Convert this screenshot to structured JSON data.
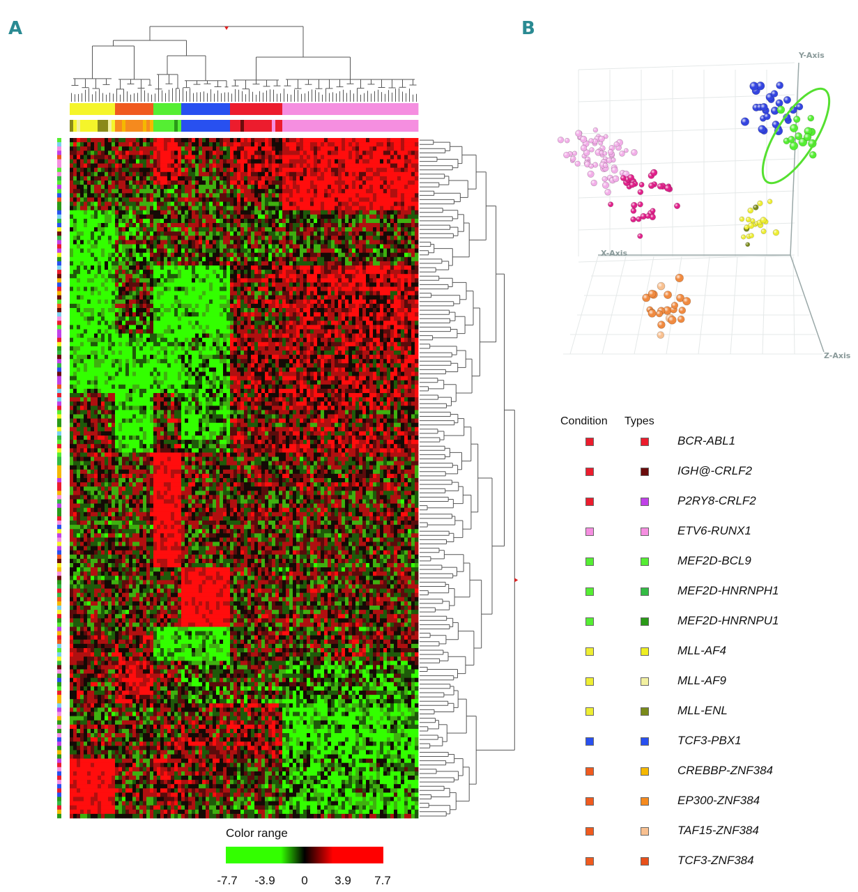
{
  "panel_labels": {
    "a": "A",
    "b": "B"
  },
  "heatmap": {
    "color_range_title": "Color range",
    "color_range_ticks": [
      "-7.7",
      "-3.9",
      "0",
      "3.9",
      "7.7"
    ],
    "gradient_colors": {
      "low": "#33ff00",
      "mid": "#000000",
      "high": "#ff0000"
    }
  },
  "legend": {
    "condition_header": "Condition",
    "types_header": "Types",
    "items": [
      {
        "label": "BCR-ABL1",
        "condition_color": "#ec1c2d",
        "type_color": "#ec1c2d"
      },
      {
        "label": "IGH@-CRLF2",
        "condition_color": "#ec1c2d",
        "type_color": "#6b0c0c"
      },
      {
        "label": "P2RY8-CRLF2",
        "condition_color": "#ec1c2d",
        "type_color": "#c040e8"
      },
      {
        "label": "ETV6-RUNX1",
        "condition_color": "#f58ee0",
        "type_color": "#f58ee0"
      },
      {
        "label": "MEF2D-BCL9",
        "condition_color": "#55ee33",
        "type_color": "#55ee33"
      },
      {
        "label": "MEF2D-HNRNPH1",
        "condition_color": "#55ee33",
        "type_color": "#33bb44"
      },
      {
        "label": "MEF2D-HNRNPU1",
        "condition_color": "#55ee33",
        "type_color": "#2a9a18"
      },
      {
        "label": "MLL-AF4",
        "condition_color": "#eeee33",
        "type_color": "#eeee22"
      },
      {
        "label": "MLL-AF9",
        "condition_color": "#eeee33",
        "type_color": "#f2f0a0"
      },
      {
        "label": "MLL-ENL",
        "condition_color": "#eeee33",
        "type_color": "#7a8a1a"
      },
      {
        "label": "TCF3-PBX1",
        "condition_color": "#2850f0",
        "type_color": "#2850f0"
      },
      {
        "label": "CREBBP-ZNF384",
        "condition_color": "#f05a1e",
        "type_color": "#f5b800"
      },
      {
        "label": "EP300-ZNF384",
        "condition_color": "#f05a1e",
        "type_color": "#f58a1e"
      },
      {
        "label": "TAF15-ZNF384",
        "condition_color": "#f05a1e",
        "type_color": "#f8c090"
      },
      {
        "label": "TCF3-ZNF384",
        "condition_color": "#f05a1e",
        "type_color": "#e8501a"
      }
    ]
  },
  "pca": {
    "x_axis_label": "X-Axis",
    "y_axis_label": "Y-Axis",
    "z_axis_label": "Z-Axis"
  },
  "chart_data": [
    {
      "type": "heatmap",
      "title": "",
      "colorbar_title": "Color range",
      "value_range": [
        -7.7,
        7.7
      ],
      "colorbar_ticks": [
        -7.7,
        -3.9,
        0,
        3.9,
        7.7
      ],
      "column_groups": [
        {
          "name": "MLL",
          "fraction": 0.125
        },
        {
          "name": "ZNF384",
          "fraction": 0.11
        },
        {
          "name": "MEF2D",
          "fraction": 0.08
        },
        {
          "name": "TCF3-PBX1",
          "fraction": 0.135
        },
        {
          "name": "BCR-ABL1/CRLF2",
          "fraction": 0.15
        },
        {
          "name": "ETV6-RUNX1",
          "fraction": 0.4
        }
      ]
    },
    {
      "type": "scatter",
      "title": "",
      "xlabel": "X-Axis",
      "ylabel": "Y-Axis",
      "zlabel": "Z-Axis",
      "clusters": [
        {
          "name": "ETV6-RUNX1",
          "color": "#f0a8e8"
        },
        {
          "name": "BCR-ABL1 / CRLF2",
          "color": "#e0208a"
        },
        {
          "name": "TCF3-PBX1",
          "color": "#3040e0"
        },
        {
          "name": "MEF2D",
          "color": "#55ee33"
        },
        {
          "name": "MLL",
          "color": "#eeee33"
        },
        {
          "name": "ZNF384",
          "color": "#f08a40"
        }
      ]
    }
  ]
}
